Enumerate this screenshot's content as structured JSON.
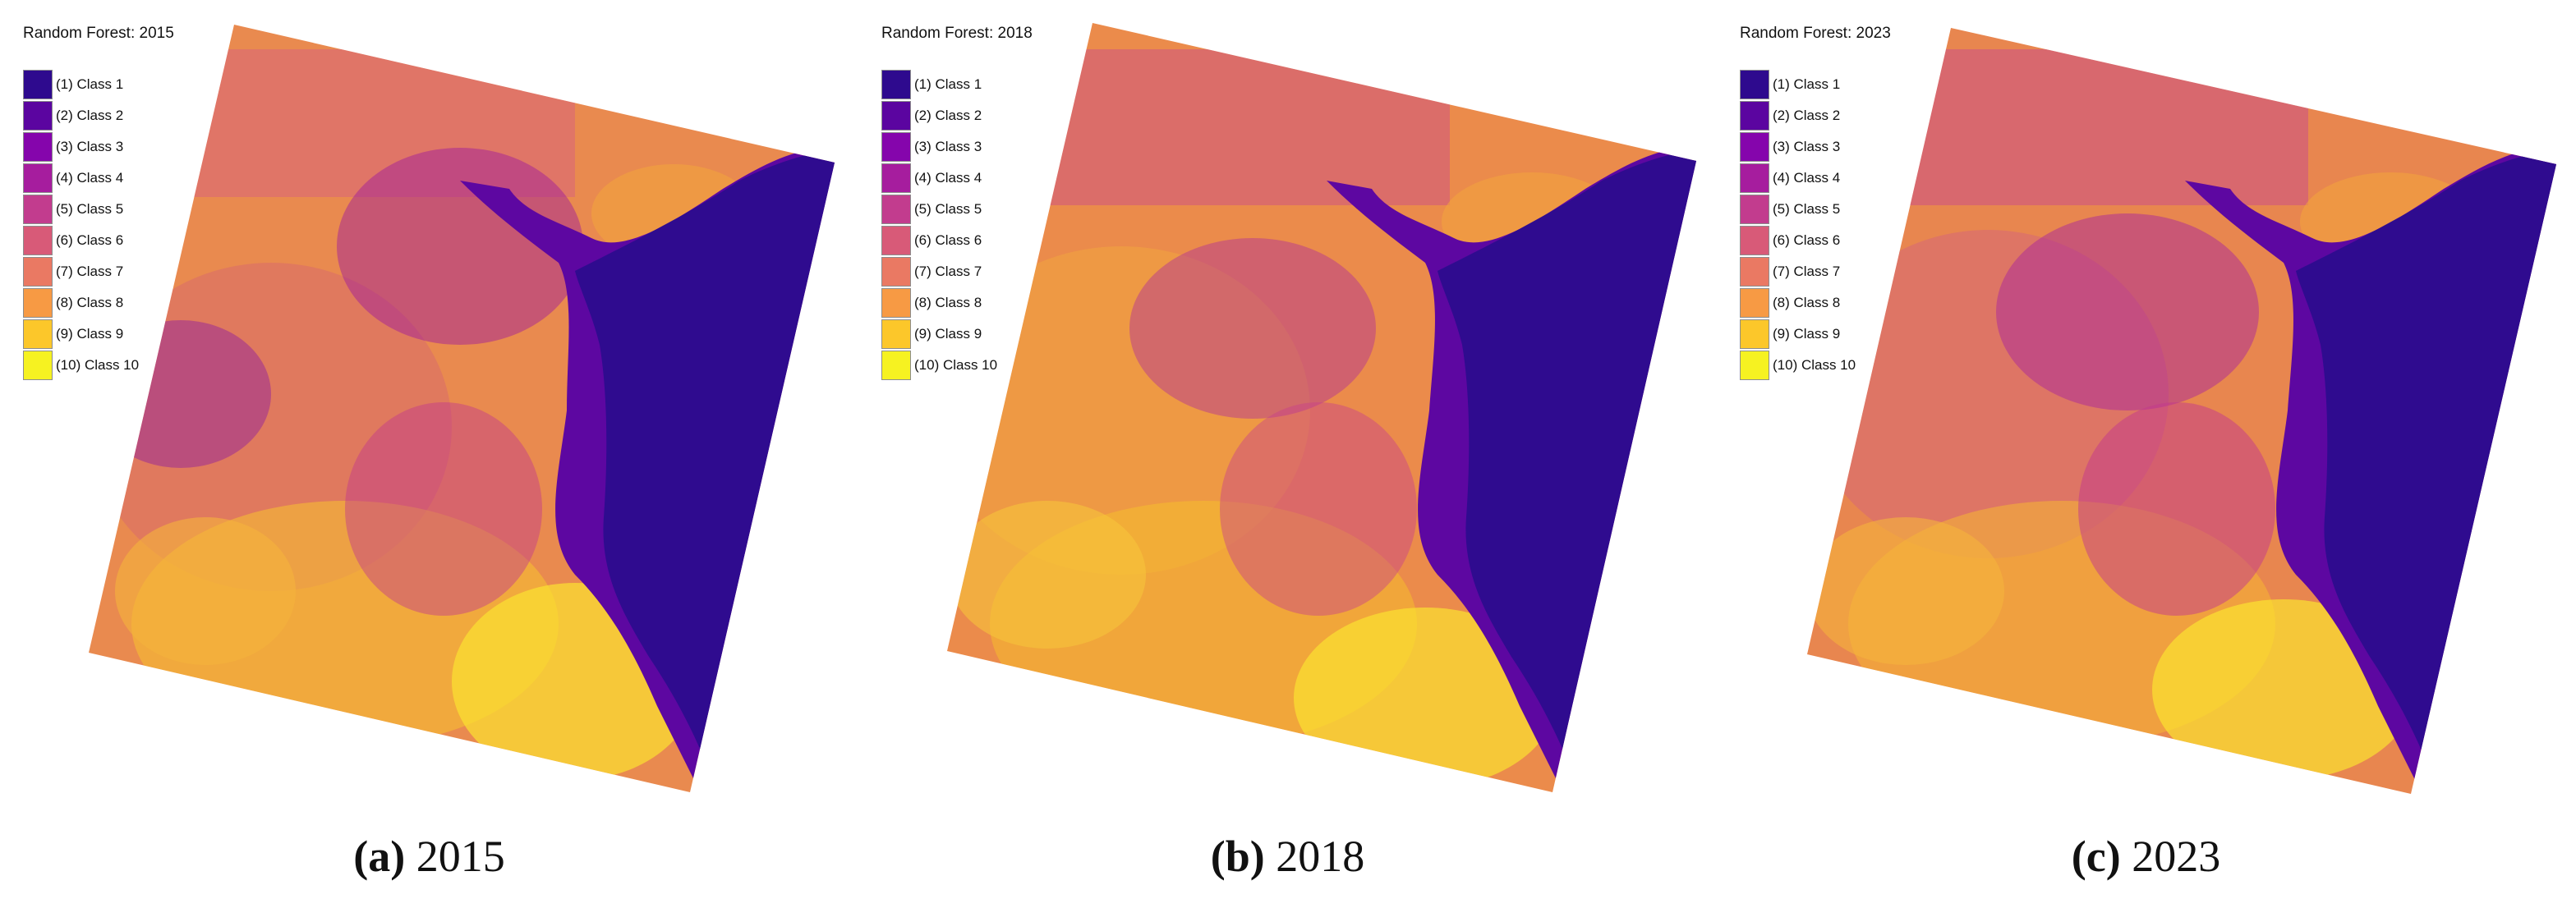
{
  "colors": {
    "background": "#ffffff",
    "legend_border": "#8d8d8d"
  },
  "legend_classes": [
    {
      "label": "(1) Class 1",
      "color": "#2e0a8e"
    },
    {
      "label": "(2) Class 2",
      "color": "#5b05a0"
    },
    {
      "label": "(3) Class 3",
      "color": "#8505ac"
    },
    {
      "label": "(4) Class 4",
      "color": "#a61d9e"
    },
    {
      "label": "(5) Class 5",
      "color": "#c23c8e"
    },
    {
      "label": "(6) Class 6",
      "color": "#d85a78"
    },
    {
      "label": "(7) Class 7",
      "color": "#ea7963"
    },
    {
      "label": "(8) Class 8",
      "color": "#f79a44"
    },
    {
      "label": "(9) Class 9",
      "color": "#fcc72a"
    },
    {
      "label": "(10) Class 10",
      "color": "#f6f221"
    }
  ],
  "panels": [
    {
      "title": "Random Forest: 2015",
      "caption_label": "(a)",
      "caption_text": " 2015"
    },
    {
      "title": "Random Forest: 2018",
      "caption_label": "(b)",
      "caption_text": " 2018"
    },
    {
      "title": "Random Forest: 2023",
      "caption_label": "(c)",
      "caption_text": " 2023"
    }
  ]
}
